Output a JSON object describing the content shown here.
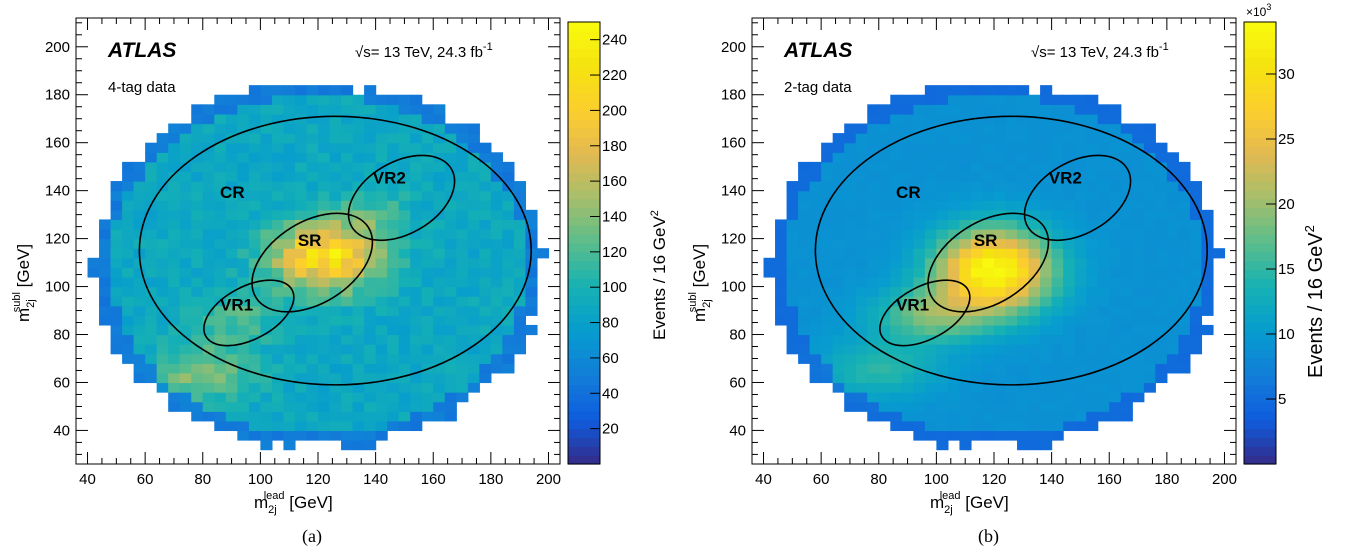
{
  "chart_data": [
    {
      "type": "heatmap",
      "caption": "(a)",
      "experiment": "ATLAS",
      "sample_label": "4-tag data",
      "energy_label": "√s= 13 TeV,  24.3 fb",
      "lumi_exp": "-1",
      "xlabel_main": "m",
      "xlabel_sub": "2j",
      "xlabel_sup": "lead",
      "xlabel_unit": " [GeV]",
      "ylabel_main": "m",
      "ylabel_sub": "2j",
      "ylabel_sup": "subl",
      "ylabel_unit": " [GeV]",
      "zlabel": "Events / 16 GeV",
      "zlabel_exp": "2",
      "z_multiplier": "",
      "xlim": [
        36,
        204
      ],
      "ylim": [
        26,
        212
      ],
      "zlim": [
        0,
        250
      ],
      "x_ticks": [
        40,
        60,
        80,
        100,
        120,
        140,
        160,
        180,
        200
      ],
      "y_ticks": [
        40,
        60,
        80,
        100,
        120,
        140,
        160,
        180,
        200
      ],
      "z_ticks": [
        20,
        40,
        60,
        80,
        100,
        120,
        140,
        160,
        180,
        200,
        220,
        240
      ],
      "regions": [
        "CR",
        "SR",
        "VR1",
        "VR2"
      ],
      "bins": {
        "xmin": 40,
        "xmax": 200,
        "ymin": 32,
        "ymax": 184,
        "step": 4
      },
      "density_model": {
        "base": 88,
        "peaks": [
          {
            "x": 123,
            "y": 113,
            "amplitude": 135,
            "sx": 13,
            "sy": 10
          },
          {
            "x": 80,
            "y": 65,
            "amplitude": 55,
            "sx": 12,
            "sy": 8
          },
          {
            "x": 92,
            "y": 87,
            "amplitude": 35,
            "sx": 10,
            "sy": 7
          },
          {
            "x": 140,
            "y": 132,
            "amplitude": 25,
            "sx": 8,
            "sy": 7
          }
        ]
      }
    },
    {
      "type": "heatmap",
      "caption": "(b)",
      "experiment": "ATLAS",
      "sample_label": "2-tag data",
      "energy_label": "√s= 13 TeV,  24.3 fb",
      "lumi_exp": "-1",
      "xlabel_main": "m",
      "xlabel_sub": "2j",
      "xlabel_sup": "lead",
      "xlabel_unit": " [GeV]",
      "ylabel_main": "m",
      "ylabel_sub": "2j",
      "ylabel_sup": "subl",
      "ylabel_unit": " [GeV]",
      "zlabel": "Events / 16 GeV",
      "zlabel_exp": "2",
      "z_multiplier": "×10",
      "z_multiplier_exp": "3",
      "xlim": [
        36,
        204
      ],
      "ylim": [
        26,
        212
      ],
      "zlim": [
        0,
        34
      ],
      "x_ticks": [
        40,
        60,
        80,
        100,
        120,
        140,
        160,
        180,
        200
      ],
      "y_ticks": [
        40,
        60,
        80,
        100,
        120,
        140,
        160,
        180,
        200
      ],
      "z_ticks": [
        5,
        10,
        15,
        20,
        25,
        30
      ],
      "regions": [
        "CR",
        "SR",
        "VR1",
        "VR2"
      ],
      "bins": {
        "xmin": 40,
        "xmax": 200,
        "ymin": 32,
        "ymax": 184,
        "step": 4
      },
      "density_model": {
        "base": 9,
        "peaks": [
          {
            "x": 120,
            "y": 107,
            "amplitude": 25,
            "sx": 14,
            "sy": 12
          },
          {
            "x": 98,
            "y": 88,
            "amplitude": 9,
            "sx": 14,
            "sy": 8
          },
          {
            "x": 80,
            "y": 66,
            "amplitude": 6,
            "sx": 14,
            "sy": 8
          }
        ]
      }
    }
  ]
}
